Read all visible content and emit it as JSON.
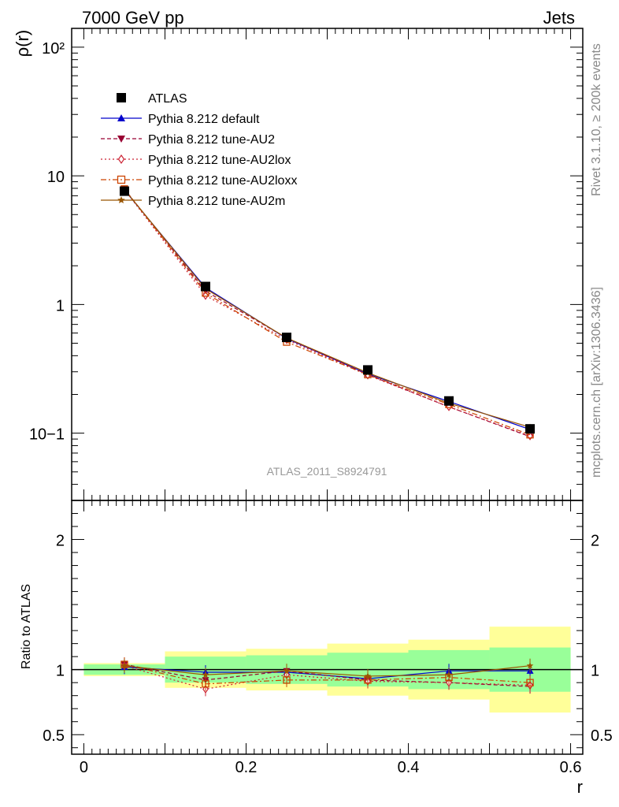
{
  "header": {
    "left_title": "7000 GeV pp",
    "right_title": "Jets"
  },
  "side_text": {
    "rivet": "Rivet 3.1.10, ≥ 200k events",
    "mcplots": "mcplots.cern.ch [arXiv:1306.3436]"
  },
  "chart_data": {
    "type": "line",
    "analysis_label": "ATLAS_2011_S8924791",
    "xlabel": "r",
    "ylabel_main": "ρ(r)",
    "ylabel_ratio": "Ratio to ATLAS",
    "xlim": [
      -0.015,
      0.615
    ],
    "ylim_main": [
      0.03,
      140
    ],
    "ylim_ratio": [
      0.35,
      2.3
    ],
    "yscale_main": "log",
    "x_tick_labels": [
      "0",
      "0.2",
      "0.4",
      "0.6"
    ],
    "main_tick_labels": [
      "10−1",
      "1",
      "10",
      "10²"
    ],
    "ratio_tick_labels": [
      "0.5",
      "1",
      "2"
    ],
    "x": [
      0.05,
      0.15,
      0.25,
      0.35,
      0.45,
      0.55
    ],
    "bin_edges": [
      0.0,
      0.1,
      0.2,
      0.3,
      0.4,
      0.5,
      0.6
    ],
    "legend_position": "top-left",
    "data": {
      "name": "ATLAS",
      "values": [
        7.6,
        1.38,
        0.555,
        0.31,
        0.178,
        0.108
      ],
      "band_inner": [
        0.04,
        0.1,
        0.11,
        0.13,
        0.15,
        0.17
      ],
      "band_outer": [
        0.05,
        0.14,
        0.16,
        0.2,
        0.23,
        0.33
      ]
    },
    "series": [
      {
        "name": "Pythia 8.212 default",
        "color": "#0000cc",
        "dash": "",
        "marker": "triangle-up",
        "ratio": [
          1.02,
          0.98,
          0.98,
          0.93,
          0.99,
          0.99
        ]
      },
      {
        "name": "Pythia 8.212 tune-AU2",
        "color": "#990033",
        "dash": "5,3",
        "marker": "triangle-down",
        "ratio": [
          1.04,
          0.92,
          0.99,
          0.92,
          0.9,
          0.87
        ]
      },
      {
        "name": "Pythia 8.212 tune-AU2lox",
        "color": "#cc2233",
        "dash": "2,3",
        "marker": "diamond-open",
        "ratio": [
          1.03,
          0.85,
          0.96,
          0.91,
          0.9,
          0.88
        ]
      },
      {
        "name": "Pythia 8.212 tune-AU2loxx",
        "color": "#cc4400",
        "dash": "7,3,2,3",
        "marker": "square-open",
        "ratio": [
          1.04,
          0.89,
          0.92,
          0.92,
          0.94,
          0.9
        ]
      },
      {
        "name": "Pythia 8.212 tune-AU2m",
        "color": "#995500",
        "dash": "",
        "marker": "star",
        "ratio": [
          1.03,
          0.96,
          0.99,
          0.95,
          0.96,
          1.03
        ]
      }
    ],
    "colors": {
      "inner_band": "#99ff99",
      "outer_band": "#ffff99",
      "data_marker": "#000000"
    }
  }
}
